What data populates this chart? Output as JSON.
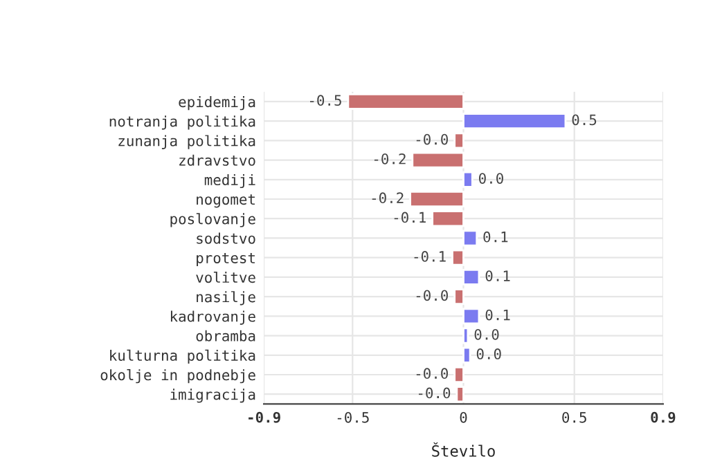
{
  "chart_data": {
    "type": "bar",
    "orientation": "horizontal",
    "xlabel": "Število",
    "categories": [
      "epidemija",
      "notranja politika",
      "zunanja politika",
      "zdravstvo",
      "mediji",
      "nogomet",
      "poslovanje",
      "sodstvo",
      "protest",
      "volitve",
      "nasilje",
      "kadrovanje",
      "obramba",
      "kulturna politika",
      "okolje in podnebje",
      "imigracija"
    ],
    "values": [
      -0.52,
      0.46,
      -0.04,
      -0.23,
      0.04,
      -0.24,
      -0.14,
      0.06,
      -0.05,
      0.07,
      -0.04,
      0.07,
      0.02,
      0.03,
      -0.04,
      -0.03
    ],
    "value_labels": [
      "-0.5",
      "0.5",
      "-0.0",
      "-0.2",
      "0.0",
      "-0.2",
      "-0.1",
      "0.1",
      "-0.1",
      "0.1",
      "-0.0",
      "0.1",
      "0.0",
      "0.0",
      "-0.0",
      "-0.0"
    ],
    "colors": [
      "#c97070",
      "#7b7bf0",
      "#c97070",
      "#c97070",
      "#7b7bf0",
      "#c97070",
      "#c97070",
      "#7b7bf0",
      "#c97070",
      "#7b7bf0",
      "#c97070",
      "#7b7bf0",
      "#7b7bf0",
      "#7b7bf0",
      "#c97070",
      "#c97070"
    ],
    "xlim": [
      -0.9,
      0.9
    ],
    "xticks": [
      -0.9,
      -0.5,
      {
        "value": 0,
        "label": "0"
      },
      0.5,
      0.9
    ],
    "grid": true
  }
}
